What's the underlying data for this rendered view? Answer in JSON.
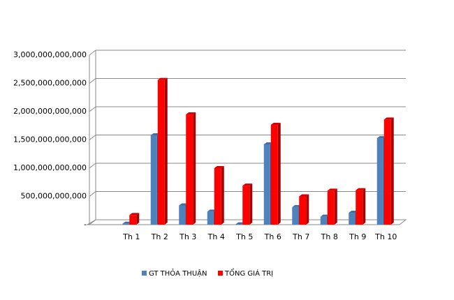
{
  "chart_data": {
    "type": "bar3d",
    "categories": [
      "Th 1",
      "Th 2",
      "Th 3",
      "Th 4",
      "Th 5",
      "Th 6",
      "Th 7",
      "Th 8",
      "Th 9",
      "Th 10"
    ],
    "series": [
      {
        "name": "GT THỎA THUẬN",
        "color": "#4f81bd",
        "values": [
          15000000000,
          1580000000000,
          340000000000,
          230000000000,
          5000000000,
          1420000000000,
          310000000000,
          140000000000,
          210000000000,
          1530000000000
        ]
      },
      {
        "name": "TỔNG GIÁ TRỊ",
        "color": "#ff0000",
        "values": [
          170000000000,
          2560000000000,
          1950000000000,
          1000000000000,
          690000000000,
          1765000000000,
          500000000000,
          600000000000,
          610000000000,
          1860000000000
        ]
      }
    ],
    "ylim": [
      0,
      3000000000000
    ],
    "yticks": [
      {
        "value": 0,
        "label": "-"
      },
      {
        "value": 500000000000,
        "label": "500,000,000,000"
      },
      {
        "value": 1000000000000,
        "label": "1,000,000,000,000"
      },
      {
        "value": 1500000000000,
        "label": "1,500,000,000,000"
      },
      {
        "value": 2000000000000,
        "label": "2,000,000,000,000"
      },
      {
        "value": 2500000000000,
        "label": "2,500,000,000,000"
      },
      {
        "value": 3000000000000,
        "label": "3,000,000,000,000"
      }
    ],
    "grid": true
  }
}
